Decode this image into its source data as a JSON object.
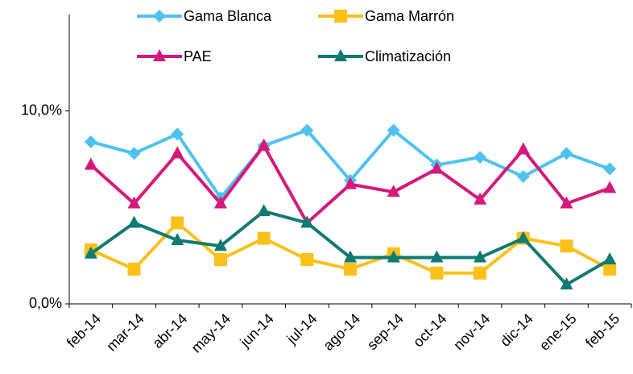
{
  "chart_data": {
    "type": "line",
    "categories": [
      "feb-14",
      "mar-14",
      "abr-14",
      "may-14",
      "jun-14",
      "jul-14",
      "ago-14",
      "sep-14",
      "oct-14",
      "nov-14",
      "dic-14",
      "ene-15",
      "feb-15"
    ],
    "series": [
      {
        "name": "Gama Blanca",
        "color": "#4fc3ef",
        "marker": "diamond",
        "values": [
          8.4,
          7.8,
          8.8,
          5.5,
          8.2,
          9.0,
          6.4,
          9.0,
          7.2,
          7.6,
          6.6,
          7.8,
          7.0
        ]
      },
      {
        "name": "Gama Marrón",
        "color": "#fcc01a",
        "marker": "square",
        "values": [
          2.8,
          1.8,
          4.2,
          2.3,
          3.4,
          2.3,
          1.8,
          2.6,
          1.6,
          1.6,
          3.4,
          3.0,
          1.8
        ]
      },
      {
        "name": "PAE",
        "color": "#d5197c",
        "marker": "triangle",
        "values": [
          7.2,
          5.2,
          7.8,
          5.2,
          8.2,
          4.2,
          6.2,
          5.8,
          7.0,
          5.4,
          8.0,
          5.2,
          6.0
        ]
      },
      {
        "name": "Climatización",
        "color": "#0f7b73",
        "marker": "triangle",
        "values": [
          2.6,
          4.2,
          3.3,
          3.0,
          4.8,
          4.2,
          2.4,
          2.4,
          2.4,
          2.4,
          3.4,
          1.0,
          2.3
        ]
      }
    ],
    "ylim": [
      0,
      15
    ],
    "yticks": [
      {
        "value": 0,
        "label": "0,0%"
      },
      {
        "value": 10,
        "label": "10,0%"
      }
    ],
    "legend": "top",
    "grid": false
  }
}
